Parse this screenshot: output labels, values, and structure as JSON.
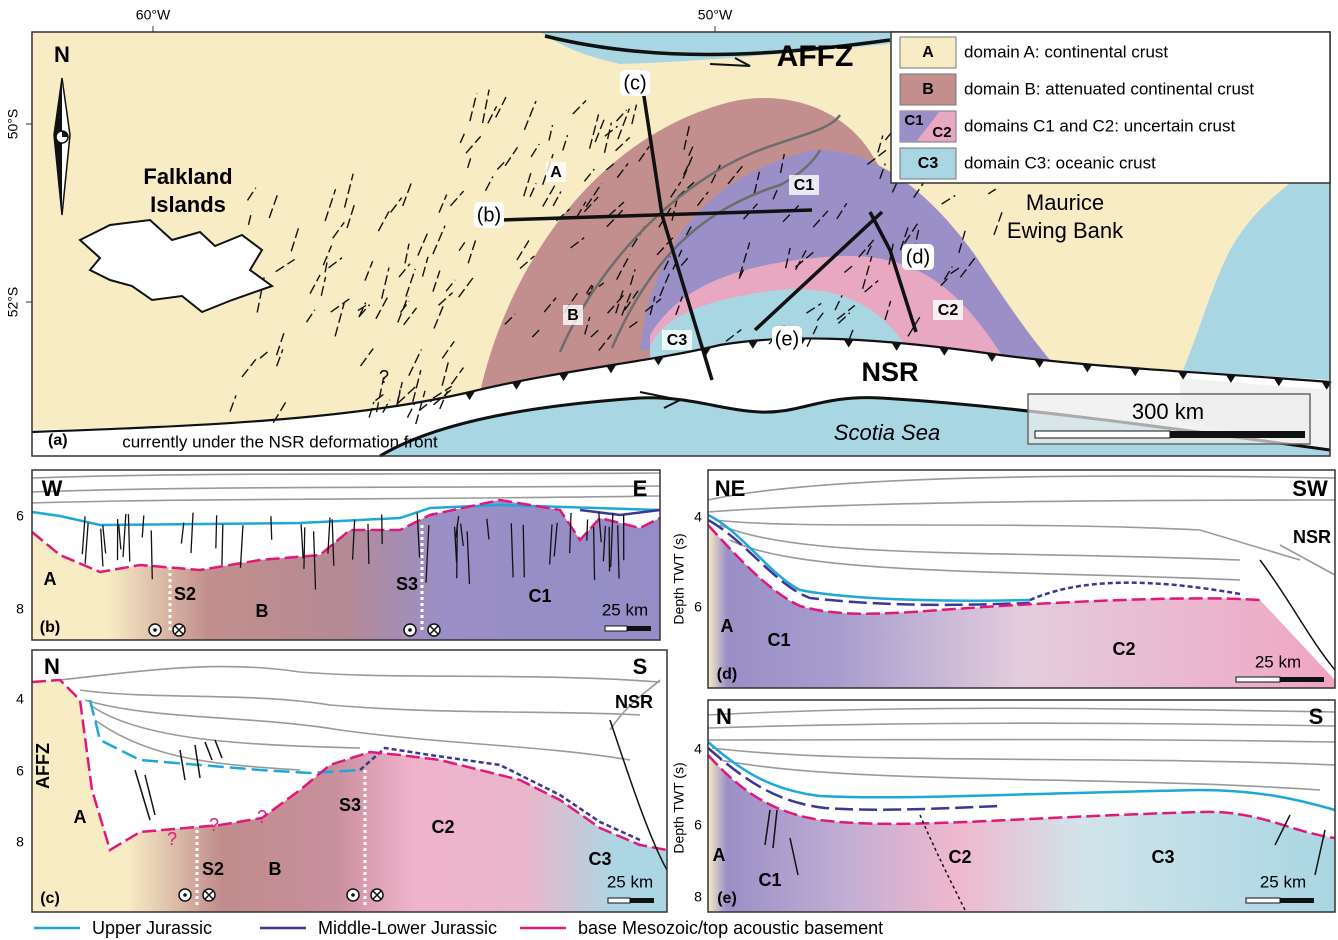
{
  "map": {
    "panel": "(a)",
    "longitudes": [
      "60°W",
      "50°W"
    ],
    "latitudes": [
      "50°S",
      "52°S"
    ],
    "north": "N",
    "falkland_islands": [
      "Falkland",
      "Islands"
    ],
    "maurice_ewing_bank": [
      "Maurice",
      "Ewing Bank"
    ],
    "affz": "AFFZ",
    "nsr": "NSR",
    "scotia_sea": "Scotia Sea",
    "profiles": [
      "(b)",
      "(c)",
      "(d)",
      "(e)"
    ],
    "domains": [
      "A",
      "B",
      "C1",
      "C2",
      "C3"
    ],
    "question": "?",
    "note": "currently under the NSR deformation front",
    "scale": "300 km"
  },
  "legend": [
    {
      "keys": [
        "A"
      ],
      "text": "domain A: continental crust"
    },
    {
      "keys": [
        "B"
      ],
      "text": "domain B: attenuated continental crust"
    },
    {
      "keys": [
        "C1",
        "C2"
      ],
      "text": "domains C1 and C2: uncertain crust"
    },
    {
      "keys": [
        "C3"
      ],
      "text": "domain C3: oceanic crust"
    }
  ],
  "sections": [
    {
      "panel": "(b)",
      "ends": [
        "W",
        "E"
      ],
      "ticks": [
        6,
        8
      ],
      "labels": [
        "A",
        "S2",
        "B",
        "S3",
        "C1"
      ],
      "scale": "25 km"
    },
    {
      "panel": "(c)",
      "ends": [
        "N",
        "S"
      ],
      "ticks": [
        4,
        6,
        8
      ],
      "labels": [
        "AFFZ",
        "A",
        "?",
        "?",
        "?",
        "S2",
        "B",
        "S3",
        "C2",
        "C3",
        "NSR"
      ],
      "scale": "25 km"
    },
    {
      "panel": "(d)",
      "ends": [
        "NE",
        "SW"
      ],
      "ticks": [
        4,
        6
      ],
      "axis_title": "Depth TWT (s)",
      "labels": [
        "NSR",
        "A",
        "C1",
        "C2"
      ],
      "scale": "25 km"
    },
    {
      "panel": "(e)",
      "ends": [
        "N",
        "S"
      ],
      "ticks": [
        4,
        6,
        8
      ],
      "axis_title": "Depth TWT (s)",
      "labels": [
        "A",
        "C1",
        "C2",
        "C3"
      ],
      "scale": "25 km"
    }
  ],
  "horizons": [
    "Upper Jurassic",
    "Middle-Lower Jurassic",
    "base Mesozoic/top acoustic basement"
  ]
}
